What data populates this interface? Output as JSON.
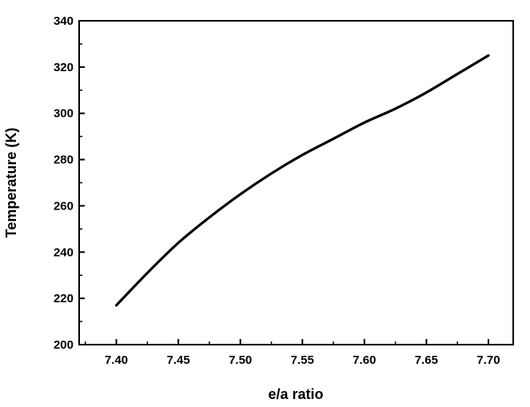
{
  "chart_data": {
    "type": "line",
    "title": "",
    "xlabel": "e/a ratio",
    "ylabel": "Temperature (K)",
    "xlim": [
      7.37,
      7.72
    ],
    "ylim": [
      200,
      340
    ],
    "x_ticks": [
      "7.40",
      "7.45",
      "7.50",
      "7.55",
      "7.60",
      "7.65",
      "7.70"
    ],
    "y_ticks": [
      "200",
      "220",
      "240",
      "260",
      "280",
      "300",
      "320",
      "340"
    ],
    "x_minor_step": 0.025,
    "y_minor_step": 10,
    "grid": false,
    "legend": "none",
    "line_color": "#000000",
    "series": [
      {
        "x": [
          7.4,
          7.425,
          7.45,
          7.475,
          7.5,
          7.525,
          7.55,
          7.575,
          7.6,
          7.625,
          7.65,
          7.675,
          7.7
        ],
        "y": [
          217,
          231,
          244,
          255,
          265,
          274,
          282,
          289,
          296,
          302,
          309,
          317,
          325
        ]
      }
    ]
  }
}
